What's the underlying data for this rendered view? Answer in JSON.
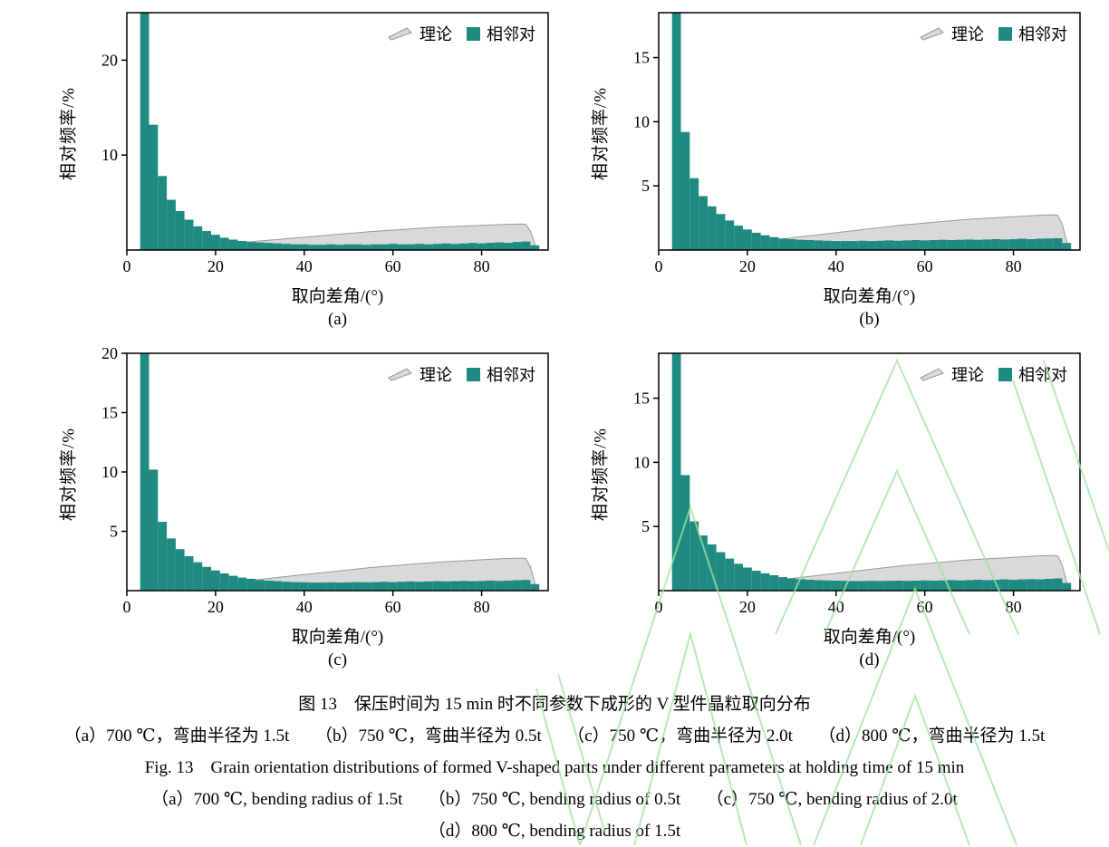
{
  "legend": {
    "theory": "理论",
    "adjacent": "相邻对"
  },
  "colors": {
    "bar": "#1f8b80",
    "theory_fill": "#d9d9d9",
    "theory_edge": "#9a9a9a",
    "frame": "#000000",
    "watermark": "#9fe49f"
  },
  "captions": {
    "caption_cn": "图 13　保压时间为 15 min 时不同参数下成形的 V 型件晶粒取向分布",
    "subcaption_cn": "（a）700 ℃，弯曲半径为 1.5t　　（b）750 ℃，弯曲半径为 0.5t　　（c）750 ℃，弯曲半径为 2.0t　　（d）800 ℃，弯曲半径为 1.5t",
    "caption_en": "Fig. 13　Grain orientation distributions of formed V-shaped parts under different parameters at holding time of 15 min",
    "subcaption_en_1": "（a）700 ℃, bending radius of 1.5t　　（b）750 ℃, bending radius of 0.5t　　（c）750 ℃, bending radius of 2.0t",
    "subcaption_en_2": "（d）800 ℃, bending radius of 1.5t"
  },
  "chart_data": [
    {
      "type": "bar",
      "id": "a",
      "label": "(a)",
      "xlabel": "取向差角/(°)",
      "ylabel": "相对频率/%",
      "xlim": [
        0,
        95
      ],
      "ylim": [
        0,
        25
      ],
      "xticks": [
        0,
        20,
        40,
        60,
        80
      ],
      "yticks": [
        10,
        20
      ],
      "bars": {
        "x_start": 3,
        "bin_width": 2,
        "values": [
          25.5,
          13.2,
          7.8,
          5.3,
          4.1,
          3.2,
          2.5,
          2.0,
          1.6,
          1.3,
          1.1,
          0.95,
          0.85,
          0.8,
          0.75,
          0.7,
          0.65,
          0.6,
          0.6,
          0.55,
          0.55,
          0.6,
          0.55,
          0.6,
          0.6,
          0.55,
          0.6,
          0.6,
          0.65,
          0.6,
          0.6,
          0.65,
          0.6,
          0.65,
          0.7,
          0.65,
          0.7,
          0.75,
          0.7,
          0.75,
          0.8,
          0.75,
          0.85,
          0.9,
          0.5
        ]
      },
      "theory": [
        [
          3,
          0
        ],
        [
          10,
          0.18
        ],
        [
          15,
          0.35
        ],
        [
          20,
          0.55
        ],
        [
          25,
          0.75
        ],
        [
          30,
          0.95
        ],
        [
          35,
          1.15
        ],
        [
          40,
          1.35
        ],
        [
          45,
          1.55
        ],
        [
          50,
          1.75
        ],
        [
          55,
          1.95
        ],
        [
          60,
          2.1
        ],
        [
          65,
          2.25
        ],
        [
          70,
          2.4
        ],
        [
          75,
          2.5
        ],
        [
          80,
          2.6
        ],
        [
          85,
          2.7
        ],
        [
          89,
          2.75
        ],
        [
          90,
          2.7
        ],
        [
          91,
          2.0
        ],
        [
          92.5,
          0
        ]
      ]
    },
    {
      "type": "bar",
      "id": "b",
      "label": "(b)",
      "xlabel": "取向差角/(°)",
      "ylabel": "相对频率/%",
      "xlim": [
        0,
        95
      ],
      "ylim": [
        0,
        18.5
      ],
      "xticks": [
        0,
        20,
        40,
        60,
        80
      ],
      "yticks": [
        5,
        10,
        15
      ],
      "bars": {
        "x_start": 3,
        "bin_width": 2,
        "values": [
          18.6,
          9.2,
          5.6,
          4.2,
          3.4,
          2.8,
          2.3,
          1.9,
          1.6,
          1.35,
          1.15,
          1.0,
          0.9,
          0.85,
          0.8,
          0.78,
          0.75,
          0.72,
          0.7,
          0.7,
          0.7,
          0.72,
          0.7,
          0.72,
          0.75,
          0.72,
          0.75,
          0.78,
          0.75,
          0.78,
          0.8,
          0.78,
          0.8,
          0.82,
          0.8,
          0.82,
          0.85,
          0.82,
          0.85,
          0.88,
          0.85,
          0.88,
          0.9,
          0.92,
          0.55
        ]
      },
      "theory": [
        [
          3,
          0
        ],
        [
          10,
          0.18
        ],
        [
          15,
          0.35
        ],
        [
          20,
          0.55
        ],
        [
          25,
          0.75
        ],
        [
          30,
          0.95
        ],
        [
          35,
          1.15
        ],
        [
          40,
          1.35
        ],
        [
          45,
          1.55
        ],
        [
          50,
          1.75
        ],
        [
          55,
          1.95
        ],
        [
          60,
          2.1
        ],
        [
          65,
          2.25
        ],
        [
          70,
          2.4
        ],
        [
          75,
          2.5
        ],
        [
          80,
          2.6
        ],
        [
          85,
          2.7
        ],
        [
          89,
          2.75
        ],
        [
          90,
          2.7
        ],
        [
          91,
          2.0
        ],
        [
          92.5,
          0
        ]
      ]
    },
    {
      "type": "bar",
      "id": "c",
      "label": "(c)",
      "xlabel": "取向差角/(°)",
      "ylabel": "相对频率/%",
      "xlim": [
        0,
        95
      ],
      "ylim": [
        0,
        20
      ],
      "xticks": [
        0,
        20,
        40,
        60,
        80
      ],
      "yticks": [
        5,
        10,
        15,
        20
      ],
      "bars": {
        "x_start": 3,
        "bin_width": 2,
        "values": [
          20.6,
          10.2,
          5.8,
          4.4,
          3.5,
          2.9,
          2.4,
          2.0,
          1.7,
          1.45,
          1.25,
          1.1,
          1.0,
          0.9,
          0.85,
          0.8,
          0.75,
          0.72,
          0.7,
          0.68,
          0.68,
          0.7,
          0.68,
          0.7,
          0.72,
          0.7,
          0.72,
          0.75,
          0.72,
          0.75,
          0.78,
          0.75,
          0.78,
          0.8,
          0.78,
          0.8,
          0.82,
          0.8,
          0.82,
          0.85,
          0.82,
          0.85,
          0.88,
          0.9,
          0.55
        ]
      },
      "theory": [
        [
          3,
          0
        ],
        [
          10,
          0.18
        ],
        [
          15,
          0.35
        ],
        [
          20,
          0.55
        ],
        [
          25,
          0.75
        ],
        [
          30,
          0.95
        ],
        [
          35,
          1.15
        ],
        [
          40,
          1.35
        ],
        [
          45,
          1.55
        ],
        [
          50,
          1.75
        ],
        [
          55,
          1.95
        ],
        [
          60,
          2.1
        ],
        [
          65,
          2.25
        ],
        [
          70,
          2.4
        ],
        [
          75,
          2.5
        ],
        [
          80,
          2.6
        ],
        [
          85,
          2.7
        ],
        [
          89,
          2.75
        ],
        [
          90,
          2.7
        ],
        [
          91,
          2.0
        ],
        [
          92.5,
          0
        ]
      ]
    },
    {
      "type": "bar",
      "id": "d",
      "label": "(d)",
      "xlabel": "取向差角/(°)",
      "ylabel": "相对频率/%",
      "xlim": [
        0,
        95
      ],
      "ylim": [
        0,
        18.5
      ],
      "xticks": [
        0,
        20,
        40,
        60,
        80
      ],
      "yticks": [
        5,
        10,
        15
      ],
      "bars": {
        "x_start": 3,
        "bin_width": 2,
        "values": [
          18.8,
          9.0,
          5.4,
          4.3,
          3.6,
          3.0,
          2.5,
          2.1,
          1.8,
          1.55,
          1.35,
          1.2,
          1.05,
          0.95,
          0.9,
          0.85,
          0.82,
          0.8,
          0.78,
          0.76,
          0.75,
          0.75,
          0.76,
          0.75,
          0.76,
          0.78,
          0.76,
          0.78,
          0.8,
          0.78,
          0.8,
          0.82,
          0.8,
          0.82,
          0.85,
          0.82,
          0.85,
          0.88,
          0.85,
          0.88,
          0.9,
          0.88,
          0.92,
          0.95,
          0.6
        ]
      },
      "theory": [
        [
          3,
          0
        ],
        [
          10,
          0.18
        ],
        [
          15,
          0.35
        ],
        [
          20,
          0.55
        ],
        [
          25,
          0.75
        ],
        [
          30,
          0.95
        ],
        [
          35,
          1.15
        ],
        [
          40,
          1.35
        ],
        [
          45,
          1.55
        ],
        [
          50,
          1.75
        ],
        [
          55,
          1.95
        ],
        [
          60,
          2.1
        ],
        [
          65,
          2.25
        ],
        [
          70,
          2.4
        ],
        [
          75,
          2.5
        ],
        [
          80,
          2.6
        ],
        [
          85,
          2.7
        ],
        [
          89,
          2.75
        ],
        [
          90,
          2.7
        ],
        [
          91,
          2.0
        ],
        [
          92.5,
          0
        ]
      ]
    }
  ]
}
